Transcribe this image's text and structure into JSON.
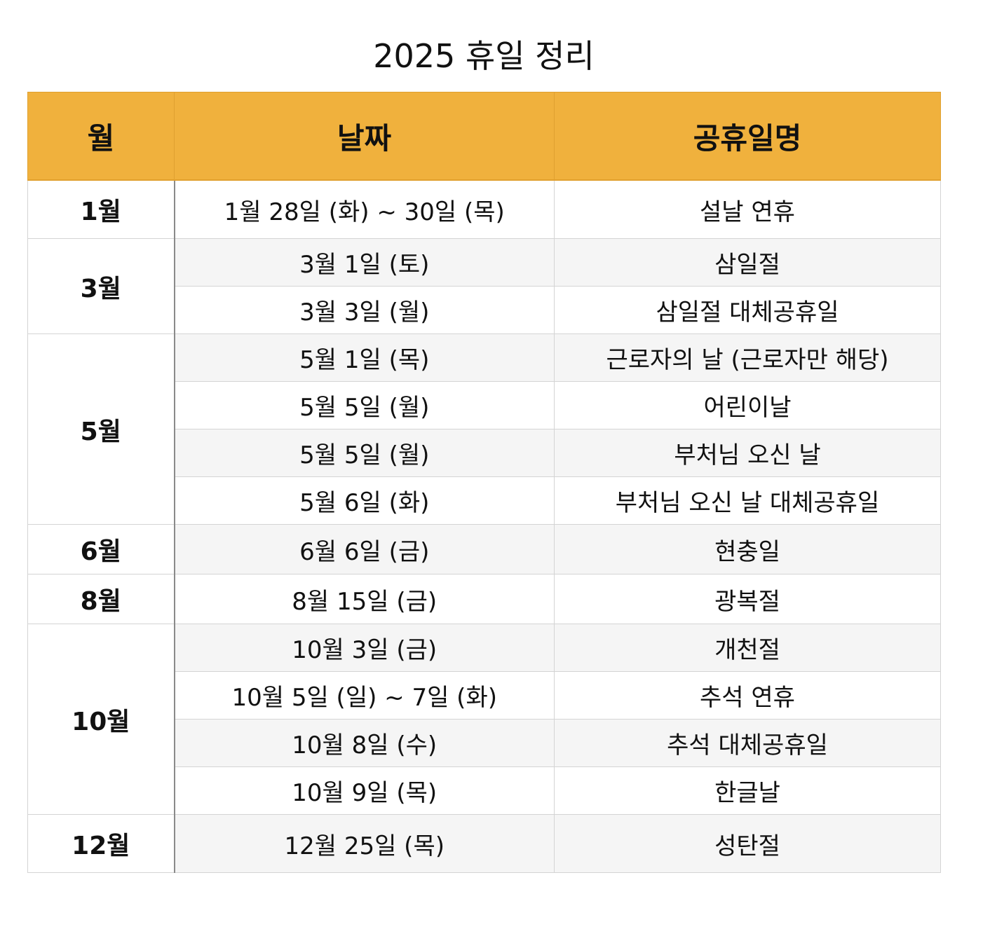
{
  "title": "2025 휴일 정리",
  "headers": {
    "month": "월",
    "date": "날짜",
    "name": "공휴일명"
  },
  "groups": [
    {
      "month": "1월",
      "rows": [
        {
          "date": "1월 28일 (화) ~ 30일 (목)",
          "name": "설날 연휴"
        }
      ]
    },
    {
      "month": "3월",
      "rows": [
        {
          "date": "3월 1일 (토)",
          "name": "삼일절"
        },
        {
          "date": "3월 3일 (월)",
          "name": "삼일절 대체공휴일"
        }
      ]
    },
    {
      "month": "5월",
      "rows": [
        {
          "date": "5월 1일 (목)",
          "name": "근로자의 날 (근로자만 해당)"
        },
        {
          "date": "5월 5일 (월)",
          "name": "어린이날"
        },
        {
          "date": "5월 5일 (월)",
          "name": "부처님 오신 날"
        },
        {
          "date": "5월 6일 (화)",
          "name": "부처님 오신 날 대체공휴일"
        }
      ]
    },
    {
      "month": "6월",
      "rows": [
        {
          "date": "6월 6일 (금)",
          "name": "현충일"
        }
      ]
    },
    {
      "month": "8월",
      "rows": [
        {
          "date": "8월 15일 (금)",
          "name": "광복절"
        }
      ]
    },
    {
      "month": "10월",
      "rows": [
        {
          "date": "10월 3일 (금)",
          "name": "개천절"
        },
        {
          "date": "10월 5일 (일) ~ 7일 (화)",
          "name": "추석 연휴"
        },
        {
          "date": "10월 8일 (수)",
          "name": "추석 대체공휴일"
        },
        {
          "date": "10월 9일 (목)",
          "name": "한글날"
        }
      ]
    },
    {
      "month": "12월",
      "rows": [
        {
          "date": "12월 25일 (목)",
          "name": "성탄절"
        }
      ]
    }
  ]
}
